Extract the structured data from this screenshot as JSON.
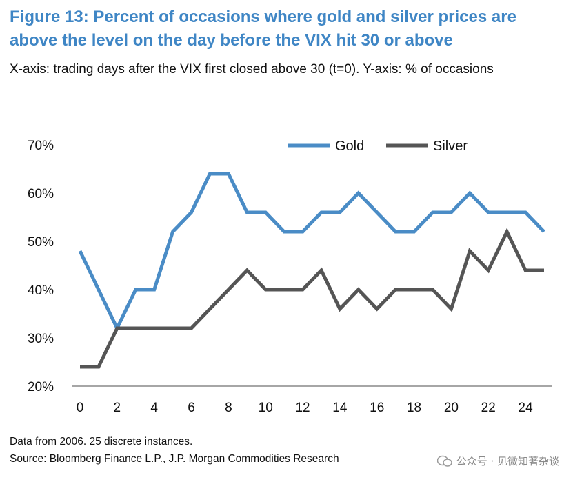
{
  "title": "Figure 13: Percent of occasions where gold and silver prices are above the level on the day before the VIX hit 30 or above",
  "subtitle": "X-axis: trading days after the VIX first closed above 30 (t=0). Y-axis: % of occasions",
  "footnote": "Data from 2006. 25 discrete instances.",
  "source": "Source: Bloomberg Finance L.P., J.P. Morgan Commodities Research",
  "watermark": "公众号 · 见微知著杂谈",
  "colors": {
    "gold": "#4a8cc6",
    "silver": "#555555",
    "title": "#3f86c5"
  },
  "chart_data": {
    "type": "line",
    "title": "Figure 13: Percent of occasions where gold and silver prices are above the level on the day before the VIX hit 30 or above",
    "xlabel": "trading days after the VIX first closed above 30 (t=0)",
    "ylabel": "% of occasions",
    "x": [
      0,
      1,
      2,
      3,
      4,
      5,
      6,
      7,
      8,
      9,
      10,
      11,
      12,
      13,
      14,
      15,
      16,
      17,
      18,
      19,
      20,
      21,
      22,
      23,
      24,
      25
    ],
    "xticks": [
      0,
      2,
      4,
      6,
      8,
      10,
      12,
      14,
      16,
      18,
      20,
      22,
      24
    ],
    "xtick_labels": [
      "0",
      "2",
      "4",
      "6",
      "8",
      "10",
      "12",
      "14",
      "16",
      "18",
      "20",
      "22",
      "24"
    ],
    "ylim": [
      20,
      70
    ],
    "yticks": [
      20,
      30,
      40,
      50,
      60,
      70
    ],
    "ytick_labels": [
      "20%",
      "30%",
      "40%",
      "50%",
      "60%",
      "70%"
    ],
    "grid": false,
    "legend_position": "top-right",
    "series": [
      {
        "name": "Gold",
        "color": "#4a8cc6",
        "values": [
          48,
          40,
          32,
          40,
          40,
          52,
          56,
          64,
          64,
          56,
          56,
          52,
          52,
          56,
          56,
          60,
          56,
          52,
          52,
          56,
          56,
          60,
          56,
          56,
          56,
          52
        ]
      },
      {
        "name": "Silver",
        "color": "#555555",
        "values": [
          24,
          24,
          32,
          32,
          32,
          32,
          32,
          36,
          40,
          44,
          40,
          40,
          40,
          44,
          36,
          40,
          36,
          40,
          40,
          40,
          36,
          48,
          44,
          52,
          44,
          44
        ]
      }
    ]
  }
}
